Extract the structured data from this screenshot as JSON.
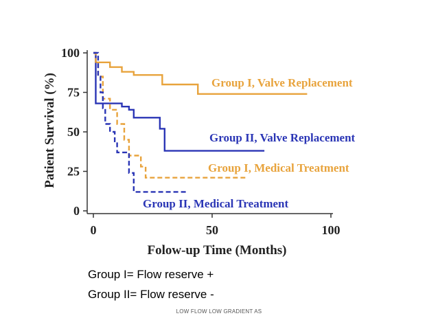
{
  "chart_data": {
    "type": "line",
    "xlabel": "Folow-up Time (Months)",
    "ylabel": "Patient Survival (%)",
    "xlim": [
      0,
      100
    ],
    "ylim": [
      0,
      100
    ],
    "xticks": [
      0,
      50,
      100
    ],
    "yticks": [
      0,
      25,
      50,
      75,
      100
    ],
    "grid": false,
    "legend": "inline labels next to curves",
    "series": [
      {
        "name": "Group I, Valve Replacement",
        "color": "#e8a33c",
        "style": "solid",
        "x": [
          0,
          1,
          4,
          7,
          12,
          15,
          17,
          24,
          29,
          42,
          44,
          90
        ],
        "y": [
          100,
          94,
          94,
          91,
          88,
          88,
          86,
          86,
          80,
          80,
          74,
          74
        ]
      },
      {
        "name": "Group II, Valve Replacement",
        "color": "#2a35b5",
        "style": "solid",
        "x": [
          0,
          1,
          5,
          9,
          12,
          15,
          17,
          25,
          28,
          30,
          72
        ],
        "y": [
          100,
          68,
          68,
          68,
          66,
          64,
          59,
          59,
          52,
          38,
          38
        ]
      },
      {
        "name": "Group I, Medical Treatment",
        "color": "#e8a33c",
        "style": "dashed",
        "x": [
          0,
          1,
          2,
          4,
          7,
          10,
          13,
          15,
          18,
          20,
          22,
          65
        ],
        "y": [
          100,
          93,
          85,
          71,
          64,
          55,
          45,
          35,
          35,
          28,
          21,
          21
        ]
      },
      {
        "name": "Group II, Medical Treatment",
        "color": "#2a35b5",
        "style": "dashed",
        "x": [
          0,
          2,
          3,
          4,
          5,
          7,
          9,
          10,
          15,
          17,
          40
        ],
        "y": [
          100,
          85,
          75,
          65,
          55,
          50,
          44,
          37,
          24,
          12,
          12
        ]
      }
    ]
  },
  "notes": {
    "group1": "Group I= Flow reserve +",
    "group2": "Group II= Flow reserve -"
  },
  "footer": "LOW FLOW LOW GRADIENT  AS"
}
